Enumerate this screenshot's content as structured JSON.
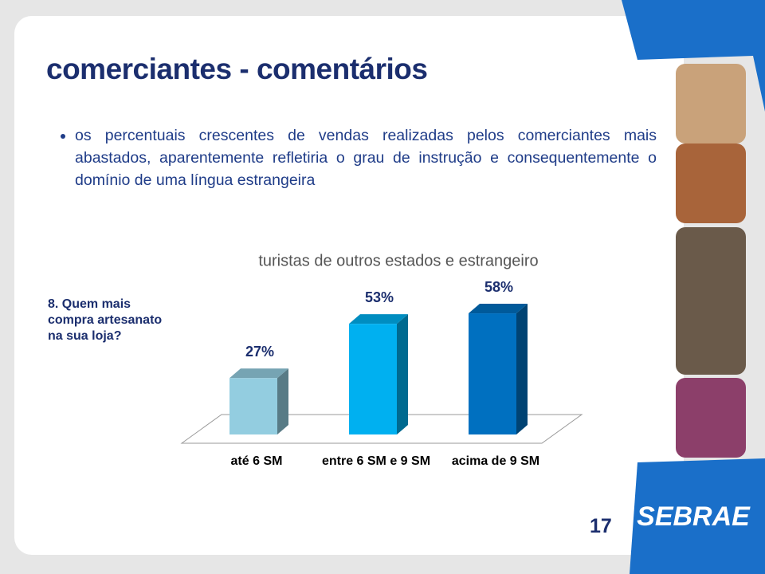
{
  "title": "comerciantes - comentários",
  "bullet": "os percentuais crescentes de vendas realizadas pelos comerciantes mais abastados, aparentemente refletiria o grau de instrução e consequentemente o domínio de uma língua estrangeira",
  "question": "8. Quem mais compra artesanato na sua loja?",
  "page_number": "17",
  "logo": "SEBRAE",
  "chart_data": {
    "type": "bar",
    "title": "turistas de outros estados e estrangeiro",
    "categories": [
      "até 6 SM",
      "entre 6 SM e 9 SM",
      "acima de 9 SM"
    ],
    "values": [
      27,
      53,
      58
    ],
    "value_labels": [
      "27%",
      "53%",
      "58%"
    ],
    "colors": [
      "#93cde0",
      "#00b0f0",
      "#0070c0"
    ]
  }
}
